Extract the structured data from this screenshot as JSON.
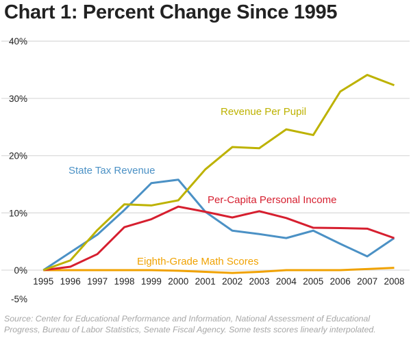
{
  "chart_data": {
    "type": "line",
    "title": "Chart 1: Percent Change Since 1995",
    "source": "Source: Center for Educational Performance and Information, National Assessment of Educational Progress, Bureau of Labor Statistics, Senate Fiscal Agency. Some tests scores linearly interpolated.",
    "x": [
      1995,
      1996,
      1997,
      1998,
      1999,
      2000,
      2001,
      2002,
      2003,
      2004,
      2005,
      2006,
      2007,
      2008
    ],
    "xlim": [
      1995,
      2008
    ],
    "ylim": [
      -5,
      40
    ],
    "yticks": [
      -5,
      0,
      10,
      20,
      30,
      40
    ],
    "ytick_labels": [
      "-5%",
      "0%",
      "10%",
      "20%",
      "30%",
      "40%"
    ],
    "grid": true,
    "legend": "inline labels",
    "series": [
      {
        "name": "Revenue Per Pupil",
        "color": "#bdb200",
        "values": [
          0,
          1.7,
          7,
          11.5,
          11.3,
          12.2,
          17.6,
          21.5,
          21.3,
          24.6,
          23.6,
          31.2,
          34.1,
          32.3
        ]
      },
      {
        "name": "State Tax Revenue",
        "color": "#4b91c5",
        "values": [
          0,
          3.1,
          6.2,
          10.5,
          15.2,
          15.8,
          10.2,
          6.9,
          6.3,
          5.6,
          6.9,
          4.6,
          2.4,
          5.6
        ]
      },
      {
        "name": "Per-Capita Personal Income",
        "color": "#d61f2f",
        "values": [
          0,
          0.6,
          2.8,
          7.5,
          8.9,
          11.1,
          10.2,
          9.2,
          10.3,
          9.1,
          7.4,
          7.35,
          7.25,
          5.6
        ]
      },
      {
        "name": "Eighth-Grade Math Scores",
        "color": "#f0a202",
        "values": [
          0,
          0,
          0,
          0,
          0,
          -0.1,
          -0.3,
          -0.5,
          -0.3,
          0,
          0,
          0,
          0.2,
          0.4
        ]
      }
    ]
  }
}
